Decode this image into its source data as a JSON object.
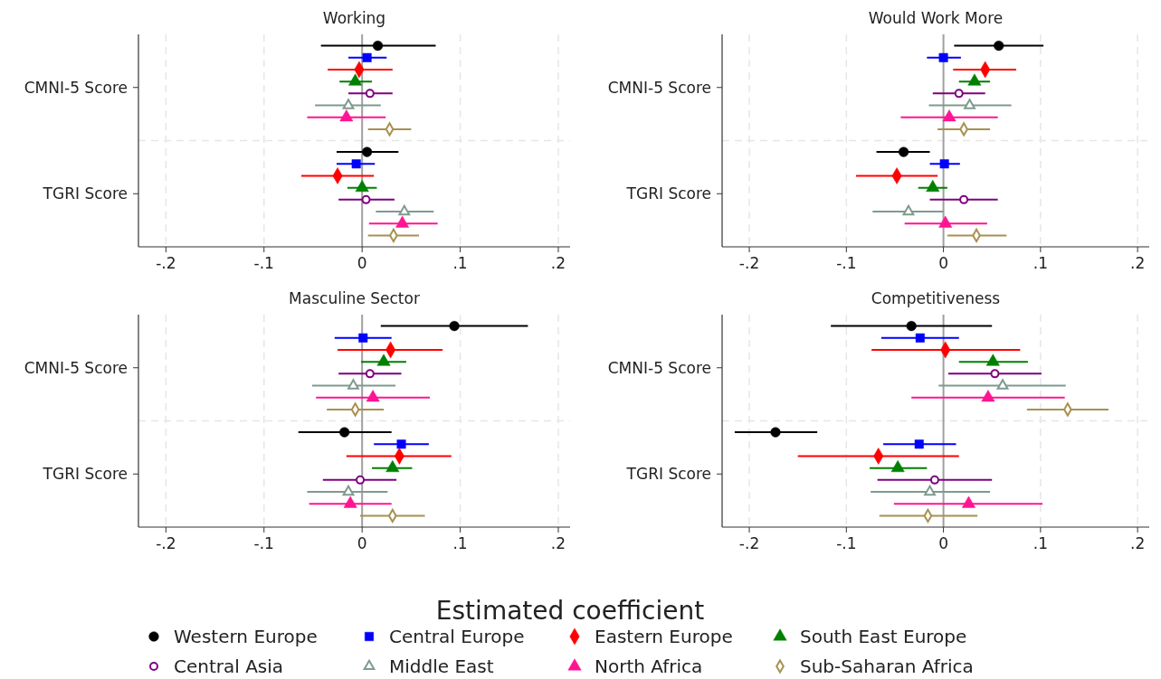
{
  "chart_data": [
    {
      "type": "scatter",
      "orientation": "horizontal",
      "title": "Working",
      "categories": [
        "CMNI-5 Score",
        "TGRI Score"
      ],
      "xlim": [
        -0.228,
        0.212
      ],
      "xticks": [
        {
          "value": -0.2,
          "label": "-.2"
        },
        {
          "value": -0.1,
          "label": "-.1"
        },
        {
          "value": 0,
          "label": "0"
        },
        {
          "value": 0.1,
          "label": ".1"
        },
        {
          "value": 0.2,
          "label": ".2"
        }
      ],
      "grid": true,
      "legend": "bottom",
      "ref_lines": [
        {
          "axis": "x",
          "value": 0,
          "color": "#a0a0a0"
        }
      ],
      "series": [
        {
          "name": "Western Europe",
          "color": "#000000",
          "marker": "circle",
          "values": [
            0.016,
            0.005
          ],
          "errors": [
            [
              -0.042,
              0.075
            ],
            [
              -0.026,
              0.037
            ]
          ]
        },
        {
          "name": "Central Europe",
          "color": "#0000ff",
          "marker": "square",
          "values": [
            0.005,
            -0.006
          ],
          "errors": [
            [
              -0.014,
              0.025
            ],
            [
              -0.026,
              0.013
            ]
          ]
        },
        {
          "name": "Eastern Europe",
          "color": "#ff0000",
          "marker": "diamond",
          "values": [
            -0.003,
            -0.025
          ],
          "errors": [
            [
              -0.035,
              0.031
            ],
            [
              -0.062,
              0.012
            ]
          ]
        },
        {
          "name": "South East Europe",
          "color": "#008000",
          "marker": "triangle",
          "values": [
            -0.007,
            0
          ],
          "errors": [
            [
              -0.023,
              0.01
            ],
            [
              -0.015,
              0.015
            ]
          ]
        },
        {
          "name": "Central Asia",
          "color": "#800080",
          "marker": "circle-open",
          "values": [
            0.008,
            0.004
          ],
          "errors": [
            [
              -0.014,
              0.031
            ],
            [
              -0.024,
              0.033
            ]
          ]
        },
        {
          "name": "Middle East",
          "color": "#7f9a8e",
          "marker": "triangle-open",
          "values": [
            -0.014,
            0.043
          ],
          "errors": [
            [
              -0.048,
              0.019
            ],
            [
              0.014,
              0.073
            ]
          ]
        },
        {
          "name": "North Africa",
          "color": "#ff1493",
          "marker": "triangle",
          "values": [
            -0.016,
            0.041
          ],
          "errors": [
            [
              -0.056,
              0.024
            ],
            [
              0.007,
              0.077
            ]
          ]
        },
        {
          "name": "Sub-Saharan Africa",
          "color": "#a89050",
          "marker": "diamond-open",
          "values": [
            0.028,
            0.032
          ],
          "errors": [
            [
              0.006,
              0.05
            ],
            [
              0.006,
              0.058
            ]
          ]
        }
      ]
    },
    {
      "type": "scatter",
      "orientation": "horizontal",
      "title": "Would Work More",
      "categories": [
        "CMNI-5 Score",
        "TGRI Score"
      ],
      "xlim": [
        -0.228,
        0.212
      ],
      "xticks": [
        {
          "value": -0.2,
          "label": "-.2"
        },
        {
          "value": -0.1,
          "label": "-.1"
        },
        {
          "value": 0,
          "label": "0"
        },
        {
          "value": 0.1,
          "label": ".1"
        },
        {
          "value": 0.2,
          "label": ".2"
        }
      ],
      "grid": true,
      "ref_lines": [
        {
          "axis": "x",
          "value": 0,
          "color": "#a0a0a0"
        }
      ],
      "series": [
        {
          "color": "#000000",
          "marker": "circle",
          "values": [
            0.057,
            -0.041
          ],
          "errors": [
            [
              0.011,
              0.103
            ],
            [
              -0.069,
              -0.014
            ]
          ]
        },
        {
          "color": "#0000ff",
          "marker": "square",
          "values": [
            0.0,
            0.001
          ],
          "errors": [
            [
              -0.017,
              0.018
            ],
            [
              -0.014,
              0.017
            ]
          ]
        },
        {
          "color": "#ff0000",
          "marker": "diamond",
          "values": [
            0.043,
            -0.048
          ],
          "errors": [
            [
              0.01,
              0.075
            ],
            [
              -0.09,
              -0.006
            ]
          ]
        },
        {
          "color": "#008000",
          "marker": "triangle",
          "values": [
            0.032,
            -0.011
          ],
          "errors": [
            [
              0.016,
              0.048
            ],
            [
              -0.026,
              0.004
            ]
          ]
        },
        {
          "color": "#800080",
          "marker": "circle-open",
          "values": [
            0.016,
            0.021
          ],
          "errors": [
            [
              -0.011,
              0.043
            ],
            [
              -0.014,
              0.056
            ]
          ]
        },
        {
          "color": "#7f9a8e",
          "marker": "triangle-open",
          "values": [
            0.027,
            -0.036
          ],
          "errors": [
            [
              -0.015,
              0.07
            ],
            [
              -0.073,
              0.0
            ]
          ]
        },
        {
          "color": "#ff1493",
          "marker": "triangle",
          "values": [
            0.006,
            0.002
          ],
          "errors": [
            [
              -0.044,
              0.056
            ],
            [
              -0.04,
              0.045
            ]
          ]
        },
        {
          "color": "#a89050",
          "marker": "diamond-open",
          "values": [
            0.021,
            0.034
          ],
          "errors": [
            [
              -0.006,
              0.048
            ],
            [
              0.004,
              0.065
            ]
          ]
        }
      ]
    },
    {
      "type": "scatter",
      "orientation": "horizontal",
      "title": "Masculine Sector",
      "xlabel": "Estimated coefficient",
      "categories": [
        "CMNI-5 Score",
        "TGRI Score"
      ],
      "xlim": [
        -0.228,
        0.212
      ],
      "xticks": [
        {
          "value": -0.2,
          "label": "-.2"
        },
        {
          "value": -0.1,
          "label": "-.1"
        },
        {
          "value": 0,
          "label": "0"
        },
        {
          "value": 0.1,
          "label": ".1"
        },
        {
          "value": 0.2,
          "label": ".2"
        }
      ],
      "grid": true,
      "ref_lines": [
        {
          "axis": "x",
          "value": 0,
          "color": "#a0a0a0"
        }
      ],
      "series": [
        {
          "color": "#000000",
          "marker": "circle",
          "values": [
            0.094,
            -0.018
          ],
          "errors": [
            [
              0.019,
              0.169
            ],
            [
              -0.065,
              0.03
            ]
          ]
        },
        {
          "color": "#0000ff",
          "marker": "square",
          "values": [
            0.001,
            0.04
          ],
          "errors": [
            [
              -0.028,
              0.03
            ],
            [
              0.012,
              0.068
            ]
          ]
        },
        {
          "color": "#ff0000",
          "marker": "diamond",
          "values": [
            0.029,
            0.038
          ],
          "errors": [
            [
              -0.025,
              0.082
            ],
            [
              -0.016,
              0.091
            ]
          ]
        },
        {
          "color": "#008000",
          "marker": "triangle",
          "values": [
            0.022,
            0.031
          ],
          "errors": [
            [
              -0.001,
              0.045
            ],
            [
              0.01,
              0.051
            ]
          ]
        },
        {
          "color": "#800080",
          "marker": "circle-open",
          "values": [
            0.008,
            -0.002
          ],
          "errors": [
            [
              -0.024,
              0.04
            ],
            [
              -0.04,
              0.035
            ]
          ]
        },
        {
          "color": "#7f9a8e",
          "marker": "triangle-open",
          "values": [
            -0.009,
            -0.014
          ],
          "errors": [
            [
              -0.051,
              0.034
            ],
            [
              -0.056,
              0.026
            ]
          ]
        },
        {
          "color": "#ff1493",
          "marker": "triangle",
          "values": [
            0.011,
            -0.012
          ],
          "errors": [
            [
              -0.047,
              0.069
            ],
            [
              -0.054,
              0.03
            ]
          ]
        },
        {
          "color": "#a89050",
          "marker": "diamond-open",
          "values": [
            -0.007,
            0.031
          ],
          "errors": [
            [
              -0.036,
              0.022
            ],
            [
              -0.002,
              0.064
            ]
          ]
        }
      ]
    },
    {
      "type": "scatter",
      "orientation": "horizontal",
      "title": "Competitiveness",
      "categories": [
        "CMNI-5 Score",
        "TGRI Score"
      ],
      "xlim": [
        -0.228,
        0.212
      ],
      "xticks": [
        {
          "value": -0.2,
          "label": "-.2"
        },
        {
          "value": -0.1,
          "label": "-.1"
        },
        {
          "value": 0,
          "label": "0"
        },
        {
          "value": 0.1,
          "label": ".1"
        },
        {
          "value": 0.2,
          "label": ".2"
        }
      ],
      "grid": true,
      "ref_lines": [
        {
          "axis": "x",
          "value": 0,
          "color": "#a0a0a0"
        }
      ],
      "series": [
        {
          "color": "#000000",
          "marker": "circle",
          "values": [
            -0.033,
            -0.173
          ],
          "errors": [
            [
              -0.116,
              0.05
            ],
            [
              -0.215,
              -0.13
            ]
          ]
        },
        {
          "color": "#0000ff",
          "marker": "square",
          "values": [
            -0.024,
            -0.025
          ],
          "errors": [
            [
              -0.064,
              0.016
            ],
            [
              -0.062,
              0.013
            ]
          ]
        },
        {
          "color": "#ff0000",
          "marker": "diamond",
          "values": [
            0.002,
            -0.067
          ],
          "errors": [
            [
              -0.074,
              0.079
            ],
            [
              -0.15,
              0.016
            ]
          ]
        },
        {
          "color": "#008000",
          "marker": "triangle",
          "values": [
            0.051,
            -0.047
          ],
          "errors": [
            [
              0.016,
              0.087
            ],
            [
              -0.076,
              -0.017
            ]
          ]
        },
        {
          "color": "#800080",
          "marker": "circle-open",
          "values": [
            0.053,
            -0.009
          ],
          "errors": [
            [
              0.005,
              0.101
            ],
            [
              -0.068,
              0.05
            ]
          ]
        },
        {
          "color": "#7f9a8e",
          "marker": "triangle-open",
          "values": [
            0.061,
            -0.014
          ],
          "errors": [
            [
              -0.005,
              0.126
            ],
            [
              -0.075,
              0.048
            ]
          ]
        },
        {
          "color": "#ff1493",
          "marker": "triangle",
          "values": [
            0.046,
            0.026
          ],
          "errors": [
            [
              -0.033,
              0.125
            ],
            [
              -0.051,
              0.102
            ]
          ]
        },
        {
          "color": "#a89050",
          "marker": "diamond-open",
          "values": [
            0.128,
            -0.016
          ],
          "errors": [
            [
              0.086,
              0.17
            ],
            [
              -0.066,
              0.035
            ]
          ]
        }
      ]
    }
  ]
}
